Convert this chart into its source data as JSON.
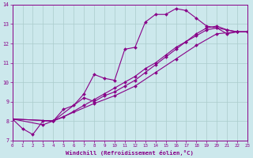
{
  "background_color": "#cce8ec",
  "grid_color": "#aacccc",
  "line_color": "#880088",
  "xlim": [
    0,
    23
  ],
  "ylim": [
    7,
    14
  ],
  "xticks": [
    0,
    1,
    2,
    3,
    4,
    5,
    6,
    7,
    8,
    9,
    10,
    11,
    12,
    13,
    14,
    15,
    16,
    17,
    18,
    19,
    20,
    21,
    22,
    23
  ],
  "yticks": [
    7,
    8,
    9,
    10,
    11,
    12,
    13,
    14
  ],
  "xlabel": "Windchill (Refroidissement éolien,°C)",
  "series1": [
    [
      0,
      8.1
    ],
    [
      1,
      7.6
    ],
    [
      2,
      7.3
    ],
    [
      3,
      8.0
    ],
    [
      4,
      8.0
    ],
    [
      5,
      8.6
    ],
    [
      6,
      8.8
    ],
    [
      7,
      9.4
    ],
    [
      8,
      10.4
    ],
    [
      9,
      10.2
    ],
    [
      10,
      10.1
    ],
    [
      11,
      11.7
    ],
    [
      12,
      11.8
    ],
    [
      13,
      13.1
    ],
    [
      14,
      13.5
    ],
    [
      15,
      13.5
    ],
    [
      16,
      13.8
    ],
    [
      17,
      13.7
    ],
    [
      18,
      13.3
    ],
    [
      19,
      12.9
    ],
    [
      20,
      12.8
    ],
    [
      21,
      12.5
    ],
    [
      22,
      12.6
    ],
    [
      23,
      12.6
    ]
  ],
  "series2": [
    [
      0,
      8.1
    ],
    [
      3,
      7.8
    ],
    [
      4,
      8.0
    ],
    [
      5,
      8.2
    ],
    [
      6,
      8.5
    ],
    [
      7,
      8.8
    ],
    [
      8,
      9.1
    ],
    [
      9,
      9.4
    ],
    [
      10,
      9.7
    ],
    [
      11,
      10.0
    ],
    [
      12,
      10.3
    ],
    [
      13,
      10.7
    ],
    [
      14,
      11.0
    ],
    [
      15,
      11.4
    ],
    [
      16,
      11.8
    ],
    [
      17,
      12.1
    ],
    [
      18,
      12.5
    ],
    [
      19,
      12.8
    ],
    [
      20,
      12.9
    ],
    [
      21,
      12.7
    ],
    [
      22,
      12.6
    ],
    [
      23,
      12.6
    ]
  ],
  "series3": [
    [
      0,
      8.1
    ],
    [
      4,
      8.0
    ],
    [
      7,
      9.2
    ],
    [
      8,
      9.0
    ],
    [
      9,
      9.3
    ],
    [
      10,
      9.5
    ],
    [
      11,
      9.8
    ],
    [
      12,
      10.1
    ],
    [
      13,
      10.5
    ],
    [
      14,
      10.9
    ],
    [
      15,
      11.3
    ],
    [
      16,
      11.7
    ],
    [
      17,
      12.1
    ],
    [
      18,
      12.4
    ],
    [
      19,
      12.7
    ],
    [
      20,
      12.8
    ],
    [
      21,
      12.7
    ],
    [
      22,
      12.6
    ],
    [
      23,
      12.6
    ]
  ],
  "series4": [
    [
      0,
      8.1
    ],
    [
      4,
      8.0
    ],
    [
      8,
      8.9
    ],
    [
      10,
      9.3
    ],
    [
      12,
      9.8
    ],
    [
      14,
      10.5
    ],
    [
      16,
      11.2
    ],
    [
      18,
      11.9
    ],
    [
      20,
      12.5
    ],
    [
      22,
      12.6
    ],
    [
      23,
      12.6
    ]
  ]
}
